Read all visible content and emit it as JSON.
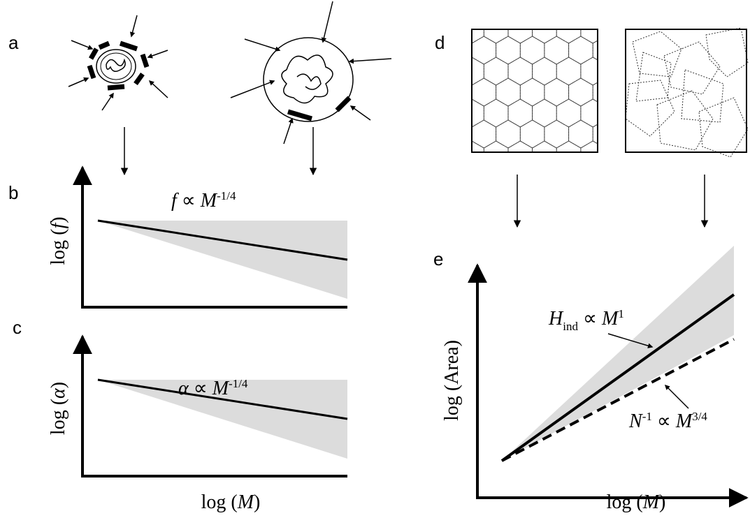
{
  "panels": {
    "a": {
      "label": "a"
    },
    "b": {
      "label": "b",
      "y_axis": [
        "log (",
        "f",
        ")"
      ],
      "formula": [
        "f",
        " ∝ ",
        "M",
        "-1/4"
      ]
    },
    "c": {
      "label": "c",
      "y_axis": [
        "log (",
        "α",
        ")"
      ],
      "formula": [
        "α",
        " ∝ ",
        "M",
        "-1/4"
      ],
      "x_axis": [
        "log (",
        "M",
        ")"
      ]
    },
    "d": {
      "label": "d"
    },
    "e": {
      "label": "e",
      "y_axis": "log (Area)",
      "x_axis": [
        "log (",
        "M",
        ")"
      ],
      "formula_solid": [
        "H",
        "ind",
        " ∝ ",
        "M",
        "1"
      ],
      "formula_dashed": [
        "N",
        "-1",
        " ∝ ",
        "M",
        "3/4"
      ]
    }
  }
}
